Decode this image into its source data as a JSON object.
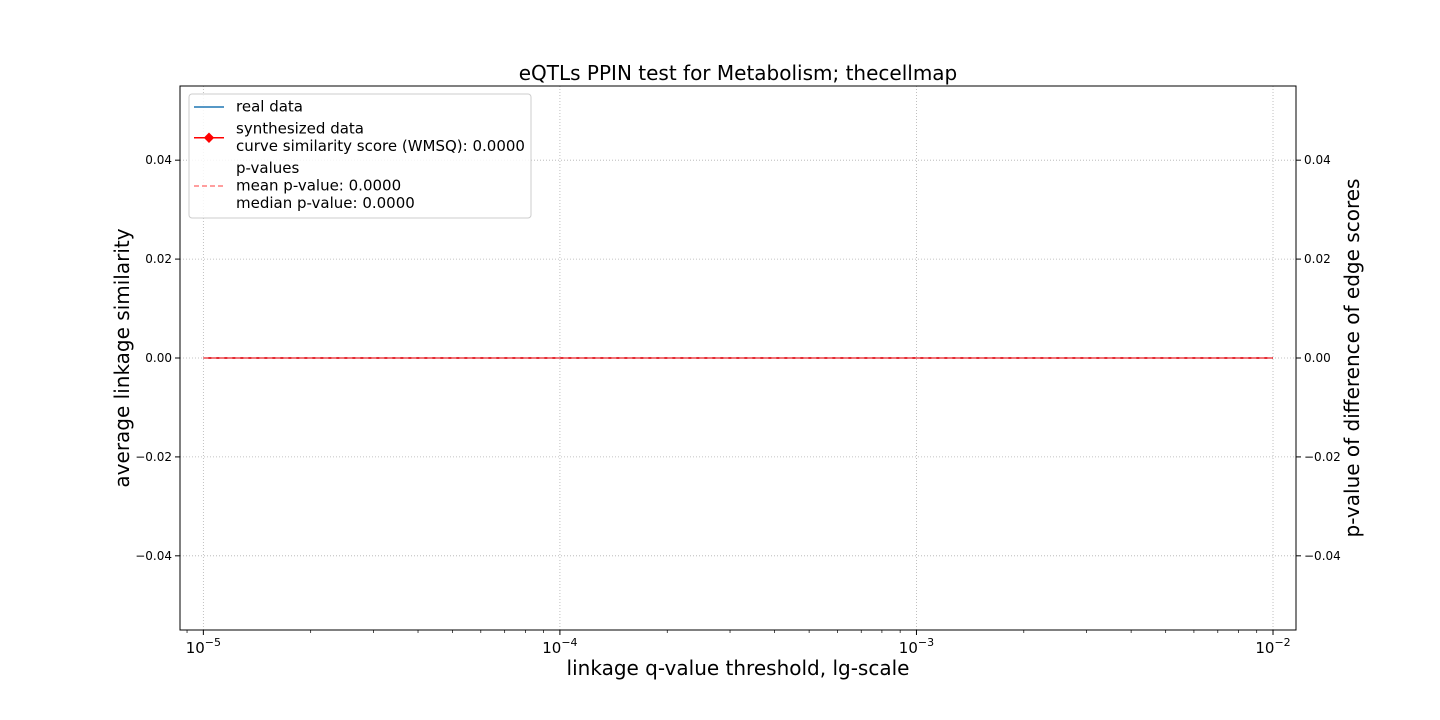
{
  "chart_data": {
    "type": "line",
    "title": "eQTLs PPIN test for Metabolism; thecellmap",
    "xlabel": "linkage q-value threshold, lg-scale",
    "ylabel": "average linkage similarity",
    "y2label": "p-value of difference of edge scores",
    "xscale": "log",
    "xlim": [
      8.6e-06,
      0.0116
    ],
    "ylim": [
      -0.055,
      0.055
    ],
    "y2lim": [
      -0.055,
      0.055
    ],
    "grid": true,
    "legend_position": "upper-left",
    "x_ticks": [
      {
        "value": 1e-05,
        "base": "10",
        "exp": "−5"
      },
      {
        "value": 0.0001,
        "base": "10",
        "exp": "−4"
      },
      {
        "value": 0.001,
        "base": "10",
        "exp": "−3"
      },
      {
        "value": 0.01,
        "base": "10",
        "exp": "−2"
      }
    ],
    "y_ticks": [
      {
        "value": 0.04,
        "label": "0.04"
      },
      {
        "value": 0.02,
        "label": "0.02"
      },
      {
        "value": 0.0,
        "label": "0.00"
      },
      {
        "value": -0.02,
        "label": "−0.02"
      },
      {
        "value": -0.04,
        "label": "−0.04"
      }
    ],
    "y2_ticks": [
      {
        "value": 0.04,
        "label": "0.04"
      },
      {
        "value": 0.02,
        "label": "0.02"
      },
      {
        "value": 0.0,
        "label": "0.00"
      },
      {
        "value": -0.02,
        "label": "−0.02"
      },
      {
        "value": -0.04,
        "label": "−0.04"
      }
    ],
    "series": [
      {
        "name": "real data",
        "color": "#1f77b4",
        "style": "solid",
        "axis": "left",
        "x": [
          1e-05,
          0.0001,
          0.001,
          0.01
        ],
        "y": [
          0,
          0,
          0,
          0
        ]
      },
      {
        "name": "synthesized data",
        "color": "#ff0000",
        "style": "solid",
        "marker": "diamond",
        "axis": "left",
        "x": [
          1e-05,
          0.0001,
          0.001,
          0.01
        ],
        "y": [
          0,
          0,
          0,
          0
        ]
      },
      {
        "name": "p-values",
        "color": "#ff7f7f",
        "style": "dashed",
        "axis": "right",
        "x": [
          1e-05,
          0.0001,
          0.001,
          0.01
        ],
        "y": [
          0,
          0,
          0,
          0
        ]
      }
    ],
    "legend": [
      {
        "lines": [
          "real data"
        ],
        "color": "#1f77b4",
        "style": "solid"
      },
      {
        "lines": [
          "synthesized data",
          "curve similarity score (WMSQ): 0.0000"
        ],
        "color": "#ff0000",
        "style": "solid",
        "marker": "diamond"
      },
      {
        "lines": [
          "p-values",
          "mean p-value: 0.0000",
          "median p-value: 0.0000"
        ],
        "color": "#ff7f7f",
        "style": "dashed"
      }
    ]
  }
}
